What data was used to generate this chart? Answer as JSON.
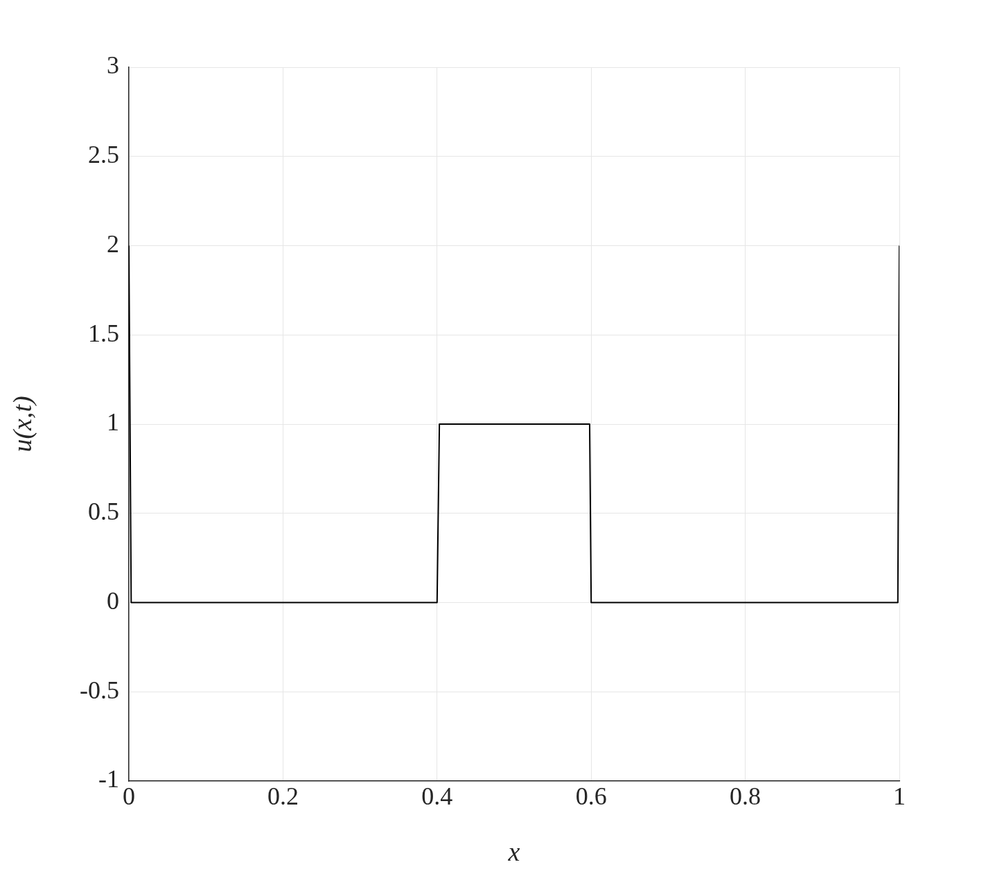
{
  "chart_data": {
    "type": "line",
    "xlabel": "x",
    "ylabel": "u(x,t)",
    "x": [
      0,
      0.003,
      0.4,
      0.403,
      0.598,
      0.6,
      0.998,
      1
    ],
    "series": [
      {
        "color": "#000000",
        "values": [
          2,
          0,
          0,
          1,
          1,
          0,
          0,
          2
        ]
      }
    ],
    "xlim": [
      0,
      1
    ],
    "xticks": [
      0,
      0.2,
      0.4,
      0.6,
      0.8,
      1
    ],
    "ylim": [
      -1,
      3
    ],
    "yticks": [
      -1,
      -0.5,
      0,
      0.5,
      1,
      1.5,
      2,
      2.5,
      3
    ],
    "grid": true,
    "legend": false,
    "marker": "none",
    "line_style": "solid"
  }
}
